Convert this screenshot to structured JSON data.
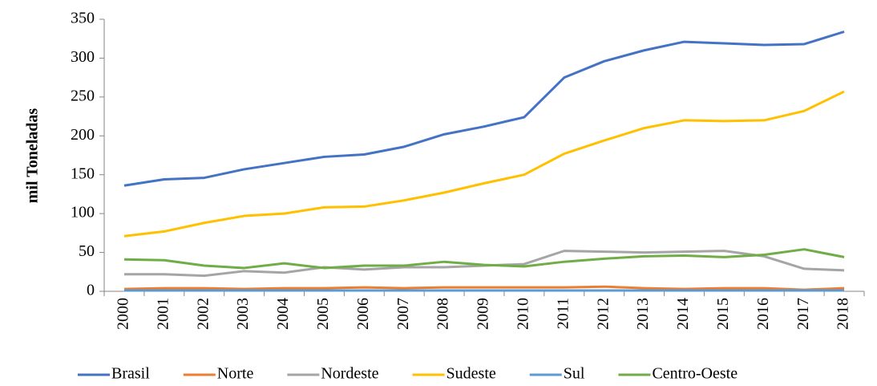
{
  "chart_data": {
    "type": "line",
    "y_label": "mil Toneladas",
    "categories": [
      "2000",
      "2001",
      "2002",
      "2003",
      "2004",
      "2005",
      "2006",
      "2007",
      "2008",
      "2009",
      "2010",
      "2011",
      "2012",
      "2013",
      "2014",
      "2015",
      "2016",
      "2017",
      "2018"
    ],
    "series": [
      {
        "name": "Brasil",
        "color": "#4472c4",
        "values": [
          136,
          144,
          146,
          157,
          165,
          173,
          176,
          186,
          202,
          212,
          224,
          275,
          296,
          310,
          321,
          319,
          317,
          318,
          334
        ]
      },
      {
        "name": "Norte",
        "color": "#ed7d31",
        "values": [
          3,
          4,
          4,
          3,
          4,
          4,
          5,
          4,
          5,
          5,
          5,
          5,
          6,
          4,
          3,
          4,
          4,
          2,
          4
        ]
      },
      {
        "name": "Nordeste",
        "color": "#a5a5a5",
        "values": [
          22,
          22,
          20,
          26,
          24,
          31,
          28,
          31,
          31,
          33,
          35,
          52,
          51,
          50,
          51,
          52,
          45,
          29,
          27
        ]
      },
      {
        "name": "Sudeste",
        "color": "#ffc000",
        "values": [
          71,
          77,
          88,
          97,
          100,
          108,
          109,
          117,
          127,
          139,
          150,
          177,
          194,
          210,
          220,
          219,
          220,
          232,
          257
        ]
      },
      {
        "name": "Sul",
        "color": "#5b9bd5",
        "values": [
          1,
          1,
          1,
          1,
          1,
          1,
          1,
          1,
          1,
          1,
          1,
          1,
          1,
          1,
          1,
          1,
          1,
          1,
          1
        ]
      },
      {
        "name": "Centro-Oeste",
        "color": "#70ad47",
        "values": [
          41,
          40,
          33,
          30,
          36,
          30,
          33,
          33,
          38,
          34,
          32,
          38,
          42,
          45,
          46,
          44,
          47,
          54,
          44
        ]
      }
    ],
    "ylim": [
      0,
      350
    ],
    "yticks": [
      0,
      50,
      100,
      150,
      200,
      250,
      300,
      350
    ],
    "grid": false,
    "legend": "bottom"
  }
}
